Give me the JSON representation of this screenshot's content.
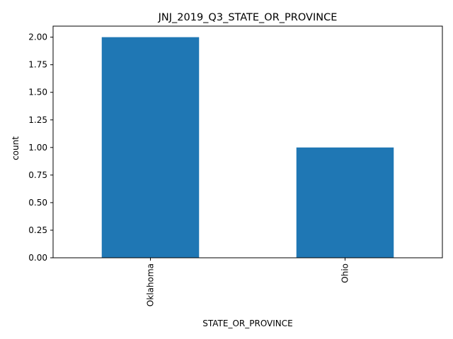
{
  "chart_data": {
    "type": "bar",
    "title": "JNJ_2019_Q3_STATE_OR_PROVINCE",
    "xlabel": "STATE_OR_PROVINCE",
    "ylabel": "count",
    "categories": [
      "Oklahoma",
      "Ohio"
    ],
    "values": [
      2,
      1
    ],
    "ylim": [
      0,
      2.1
    ],
    "yticks": [
      "0.00",
      "0.25",
      "0.50",
      "0.75",
      "1.00",
      "1.25",
      "1.50",
      "1.75",
      "2.00"
    ],
    "bar_color": "#1f77b4",
    "grid": false,
    "legend": "none"
  }
}
